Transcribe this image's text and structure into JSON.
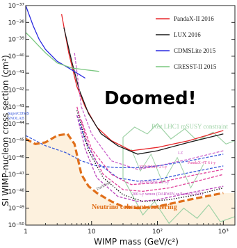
{
  "chart_data": {
    "type": "line",
    "title": "",
    "xlabel": "WIMP mass (GeV/c²)",
    "ylabel": "SI WIMP-nucleon cross section (cm²)",
    "xscale": "log",
    "yscale": "log",
    "xlim": [
      1,
      1500
    ],
    "ylim": [
      1e-50,
      1e-37
    ],
    "x_ticks": [
      {
        "value": 1,
        "label": "1"
      },
      {
        "value": 10,
        "label": "10"
      },
      {
        "value": 100,
        "label": "10²"
      },
      {
        "value": 1000,
        "label": "10³"
      }
    ],
    "y_ticks": [
      {
        "value": -50,
        "label": "10⁻⁵⁰"
      },
      {
        "value": -49,
        "label": "10⁻⁴⁹"
      },
      {
        "value": -48,
        "label": "10⁻⁴⁸"
      },
      {
        "value": -47,
        "label": "10⁻⁴⁷"
      },
      {
        "value": -46,
        "label": "10⁻⁴⁶"
      },
      {
        "value": -45,
        "label": "10⁻⁴⁵"
      },
      {
        "value": -44,
        "label": "10⁻⁴⁴"
      },
      {
        "value": -43,
        "label": "10⁻⁴³"
      },
      {
        "value": -42,
        "label": "10⁻⁴²"
      },
      {
        "value": -41,
        "label": "10⁻⁴¹"
      },
      {
        "value": -40,
        "label": "10⁻⁴⁰"
      },
      {
        "value": -39,
        "label": "10⁻³⁹"
      },
      {
        "value": -38,
        "label": "10⁻³⁸"
      },
      {
        "value": -37,
        "label": "10⁻³⁷"
      }
    ],
    "legend_position": "top-right",
    "series": [
      {
        "name": "PandaX-II 2016",
        "color": "#e8262a",
        "dash": "solid",
        "x": [
          3.5,
          4.5,
          6,
          8,
          12,
          20,
          40,
          100,
          300,
          1000
        ],
        "y": [
          -37.5,
          -39.8,
          -41.8,
          -43.0,
          -44.2,
          -45.0,
          -45.6,
          -45.4,
          -45.0,
          -44.4
        ]
      },
      {
        "name": "LUX 2016",
        "color": "#1a1a1a",
        "dash": "solid",
        "x": [
          3.8,
          5,
          6.5,
          9,
          14,
          25,
          50,
          100,
          300,
          1000
        ],
        "y": [
          -38.3,
          -40.3,
          -42.0,
          -43.4,
          -44.6,
          -45.3,
          -45.8,
          -45.6,
          -45.1,
          -44.6
        ]
      },
      {
        "name": "CDMSLite 2015",
        "color": "#2a2ae0",
        "dash": "solid",
        "x": [
          1.0,
          1.3,
          1.6,
          2.0,
          3.0,
          4.5,
          6,
          8
        ],
        "y": [
          -37.0,
          -38.2,
          -39.0,
          -39.6,
          -40.3,
          -40.7,
          -41.0,
          -41.3
        ]
      },
      {
        "name": "CRESST-II 2015",
        "color": "#79c77f",
        "dash": "solid",
        "x": [
          1.0,
          1.2,
          1.5,
          2.0,
          3.0,
          5,
          8,
          13
        ],
        "y": [
          -38.6,
          -38.9,
          -39.3,
          -39.8,
          -40.4,
          -40.7,
          -40.8,
          -40.9
        ]
      },
      {
        "name": "",
        "color": "#cc66cc",
        "dash": "dashed",
        "x": [
          5.5,
          7,
          10,
          20,
          50,
          100,
          300,
          1000
        ],
        "y": [
          -39.8,
          -43.0,
          -44.6,
          -46.2,
          -46.7,
          -46.5,
          -46.1,
          -45.6
        ]
      },
      {
        "name": "",
        "color": "#3b5bdb",
        "dash": "dashed",
        "x": [
          1.0,
          2,
          4,
          7,
          12,
          25,
          50,
          100,
          300,
          1000
        ],
        "y": [
          -44.7,
          -45.3,
          -45.7,
          -46.2,
          -46.5,
          -46.6,
          -46.6,
          -46.5,
          -46.2,
          -45.8
        ]
      },
      {
        "name": "",
        "color": "#3b5bdb",
        "dash": "dashed",
        "x": [
          6,
          8,
          12,
          25,
          50,
          100,
          300,
          1000
        ],
        "y": [
          -43.5,
          -45.0,
          -46.3,
          -47.2,
          -47.4,
          -47.3,
          -46.9,
          -46.5
        ]
      },
      {
        "name": "",
        "color": "#e0409a",
        "dash": "dashed",
        "x": [
          7,
          10,
          20,
          40,
          100,
          300,
          1000
        ],
        "y": [
          -43.8,
          -45.5,
          -47.0,
          -47.6,
          -47.5,
          -47.1,
          -46.7
        ]
      },
      {
        "name": "",
        "color": "#e0409a",
        "dash": "dashed",
        "x": [
          6,
          9,
          15,
          30,
          60,
          150,
          400,
          1000
        ],
        "y": [
          -43.0,
          -45.3,
          -47.0,
          -47.9,
          -48.0,
          -47.8,
          -47.4,
          -47.0
        ]
      },
      {
        "name": "",
        "color": "#bb44bb",
        "dash": "dashed",
        "x": [
          6,
          8,
          12,
          25,
          50,
          100,
          300,
          1000
        ],
        "y": [
          -43.5,
          -45.5,
          -47.2,
          -48.3,
          -48.6,
          -48.5,
          -48.1,
          -47.7
        ]
      },
      {
        "name": "",
        "color": "#111111",
        "dash": "dotted",
        "x": [
          6,
          9,
          15,
          30,
          60,
          150,
          400,
          1000
        ],
        "y": [
          -43.2,
          -45.6,
          -47.2,
          -48.2,
          -48.6,
          -48.5,
          -48.2,
          -47.8
        ]
      },
      {
        "name": "",
        "color": "#e06f1a",
        "dash": "bold-dashed",
        "x": [
          1.0,
          1.4,
          2,
          3,
          4.3,
          5.5,
          7,
          9,
          12,
          20,
          30,
          50,
          100,
          300,
          1000
        ],
        "y": [
          -44.9,
          -45.2,
          -45.1,
          -44.7,
          -44.6,
          -45.2,
          -47.0,
          -47.7,
          -48.1,
          -48.6,
          -48.9,
          -49.0,
          -48.9,
          -48.5,
          -48.1
        ]
      }
    ],
    "fill_region": {
      "name": "Neutrino coherent scattering",
      "color": "#fdf1de"
    },
    "regions": [
      {
        "name": "Post LHC1 mSUSY constraint",
        "color": "#9fd2a6"
      }
    ]
  },
  "legend": [
    {
      "label": "PandaX-II 2016",
      "color": "#e8262a"
    },
    {
      "label": "LUX 2016",
      "color": "#1a1a1a"
    },
    {
      "label": "CDMSLite 2015",
      "color": "#2a2ae0"
    },
    {
      "label": "CRESST-II 2015",
      "color": "#79c77f"
    }
  ],
  "annotations": {
    "overlay_text": "Doomed!",
    "susy_region": "Post LHC1 mSUSY constraint",
    "neutrino_label": "Neutrino coherent scattering",
    "small_left_1": "SuperCDMS",
    "small_left_2": "SNOLAB",
    "label_lz": "LZ",
    "label_pandax4t": "PandaX-4T 6 t-y",
    "label_xenon": "XENON1T 2 t-y",
    "label_xenonnt": "XENONnT 20 t-y",
    "label_darwin": "200 t-y xenon (DARWIN or PandaX-30T)",
    "label_darkside": "DarkSide"
  },
  "colors": {
    "background": "#ffffff",
    "neutrino_fill": "#fdf1de",
    "susy_region": "#9fd2a6",
    "orange": "#e06f1a"
  }
}
